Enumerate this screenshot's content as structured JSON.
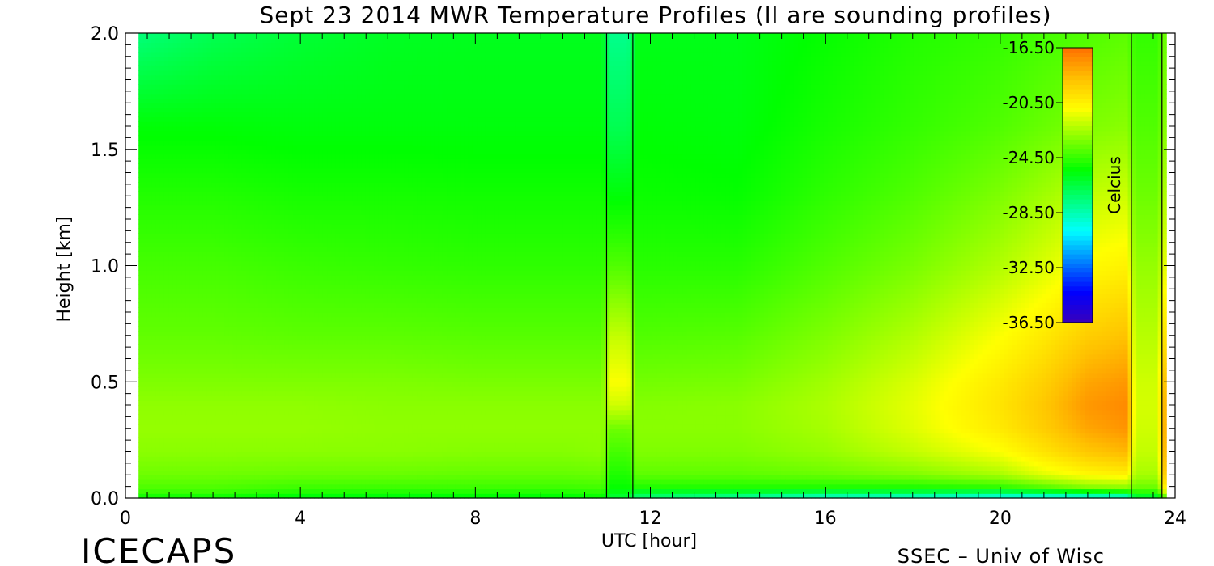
{
  "chart_data": {
    "type": "heatmap",
    "title": "Sept 23 2014 MWR Temperature Profiles (ll are sounding profiles)",
    "xlabel": "UTC [hour]",
    "ylabel": "Height [km]",
    "xlim": [
      0,
      24
    ],
    "ylim": [
      0.0,
      2.0
    ],
    "x_ticks": [
      "0",
      "4",
      "8",
      "12",
      "16",
      "20",
      "24"
    ],
    "y_ticks": [
      "0.0",
      "0.5",
      "1.0",
      "1.5",
      "2.0"
    ],
    "x_tick_values": [
      0,
      4,
      8,
      12,
      16,
      20,
      24
    ],
    "y_tick_values": [
      0.0,
      0.5,
      1.0,
      1.5,
      2.0
    ],
    "colorbar": {
      "label": "Celcius",
      "ticks": [
        "-16.50",
        "-20.50",
        "-24.50",
        "-28.50",
        "-32.50",
        "-36.50"
      ],
      "tick_values": [
        -16.5,
        -20.5,
        -24.5,
        -28.5,
        -32.5,
        -36.5
      ],
      "range": [
        -36.5,
        -16.5
      ],
      "colors": [
        "#3b00b8",
        "#0000ff",
        "#0080ff",
        "#00ffff",
        "#00ff80",
        "#00ff00",
        "#80ff00",
        "#ffff00",
        "#ffc000",
        "#ff7000"
      ]
    },
    "sounding_lines_utc": [
      11.0,
      11.6,
      23.0,
      23.7
    ],
    "heights_km": [
      0.0,
      0.02,
      0.05,
      0.1,
      0.2,
      0.3,
      0.4,
      0.5,
      0.7,
      1.0,
      1.3,
      1.6,
      2.0
    ],
    "temperature_profiles_c": [
      {
        "utc": 0.3,
        "values": [
          -25.5,
          -24.5,
          -24.0,
          -23.5,
          -23.0,
          -22.8,
          -22.9,
          -23.2,
          -23.7,
          -24.2,
          -24.8,
          -25.5,
          -27.5
        ]
      },
      {
        "utc": 2,
        "values": [
          -25.5,
          -24.5,
          -24.0,
          -23.5,
          -23.0,
          -22.8,
          -22.9,
          -23.2,
          -23.7,
          -24.2,
          -24.8,
          -25.5,
          -26.8
        ]
      },
      {
        "utc": 4,
        "values": [
          -26.0,
          -25.0,
          -24.3,
          -23.6,
          -23.0,
          -22.8,
          -22.9,
          -23.2,
          -23.8,
          -24.4,
          -25.0,
          -25.6,
          -26.3
        ]
      },
      {
        "utc": 6,
        "values": [
          -26.0,
          -25.0,
          -24.3,
          -23.6,
          -23.0,
          -22.9,
          -23.0,
          -23.2,
          -23.8,
          -24.5,
          -25.0,
          -25.6,
          -26.0
        ]
      },
      {
        "utc": 8,
        "values": [
          -25.8,
          -25.0,
          -24.3,
          -23.7,
          -23.1,
          -22.9,
          -23.0,
          -23.3,
          -23.9,
          -24.6,
          -25.1,
          -25.6,
          -25.9
        ]
      },
      {
        "utc": 10,
        "values": [
          -25.8,
          -25.0,
          -24.3,
          -23.7,
          -23.1,
          -22.9,
          -23.0,
          -23.3,
          -23.9,
          -24.6,
          -25.1,
          -25.6,
          -25.9
        ]
      },
      {
        "utc": 10.9,
        "values": [
          -25.6,
          -24.8,
          -24.2,
          -23.6,
          -23.0,
          -22.9,
          -23.0,
          -23.3,
          -23.9,
          -24.6,
          -25.1,
          -25.6,
          -25.9
        ]
      },
      {
        "utc": 11.1,
        "values": [
          -26.5,
          -25.8,
          -25.3,
          -24.9,
          -24.2,
          -23.5,
          -21.8,
          -21.0,
          -22.0,
          -24.0,
          -25.5,
          -26.8,
          -27.8
        ]
      },
      {
        "utc": 11.5,
        "values": [
          -26.5,
          -25.8,
          -25.3,
          -24.9,
          -24.2,
          -23.5,
          -21.8,
          -21.0,
          -22.0,
          -24.0,
          -25.5,
          -26.8,
          -27.8
        ]
      },
      {
        "utc": 11.7,
        "values": [
          -27.5,
          -26.5,
          -24.8,
          -23.8,
          -23.2,
          -23.0,
          -23.1,
          -23.4,
          -24.0,
          -24.7,
          -25.2,
          -25.5,
          -25.8
        ]
      },
      {
        "utc": 14,
        "values": [
          -28.5,
          -26.5,
          -24.8,
          -23.8,
          -23.2,
          -23.0,
          -23.0,
          -23.3,
          -23.9,
          -24.7,
          -25.3,
          -25.6,
          -25.8
        ]
      },
      {
        "utc": 16,
        "values": [
          -29.5,
          -27.0,
          -24.8,
          -23.6,
          -22.8,
          -22.5,
          -22.4,
          -22.6,
          -23.2,
          -24.0,
          -24.6,
          -25.0,
          -25.3
        ]
      },
      {
        "utc": 18,
        "values": [
          -29.5,
          -27.0,
          -24.8,
          -23.2,
          -22.0,
          -21.5,
          -21.4,
          -21.6,
          -22.3,
          -23.3,
          -24.0,
          -24.5,
          -24.8
        ]
      },
      {
        "utc": 20,
        "values": [
          -30.0,
          -27.5,
          -24.5,
          -22.5,
          -21.0,
          -20.2,
          -20.0,
          -20.2,
          -21.0,
          -22.3,
          -23.2,
          -24.0,
          -24.5
        ]
      },
      {
        "utc": 21,
        "values": [
          -30.5,
          -27.0,
          -23.8,
          -21.5,
          -20.0,
          -19.2,
          -19.0,
          -19.3,
          -20.2,
          -21.6,
          -22.6,
          -23.6,
          -24.2
        ]
      },
      {
        "utc": 22,
        "values": [
          -30.5,
          -26.5,
          -23.0,
          -20.8,
          -19.0,
          -18.0,
          -17.6,
          -18.0,
          -19.2,
          -20.8,
          -22.0,
          -23.2,
          -24.0
        ]
      },
      {
        "utc": 22.9,
        "values": [
          -30.5,
          -26.0,
          -22.8,
          -20.5,
          -18.5,
          -17.5,
          -17.2,
          -17.6,
          -18.8,
          -20.5,
          -21.8,
          -23.0,
          -23.8
        ]
      },
      {
        "utc": 23.1,
        "values": [
          -27.0,
          -25.0,
          -23.5,
          -22.5,
          -22.0,
          -21.8,
          -21.7,
          -21.8,
          -22.2,
          -22.8,
          -23.5,
          -24.0,
          -24.5
        ]
      },
      {
        "utc": 23.6,
        "values": [
          -27.0,
          -25.0,
          -23.5,
          -22.5,
          -22.0,
          -21.8,
          -21.7,
          -21.8,
          -22.2,
          -22.8,
          -23.5,
          -24.0,
          -24.5
        ]
      },
      {
        "utc": 23.8,
        "values": [
          -24.0,
          -21.5,
          -19.5,
          -18.2,
          -17.5,
          -17.3,
          -17.5,
          -18.0,
          -19.3,
          -21.0,
          -22.0,
          -22.8,
          -23.3
        ]
      }
    ]
  },
  "branding": {
    "logo_text": "ICECAPS",
    "credit": "SSEC – Univ of Wisc"
  }
}
